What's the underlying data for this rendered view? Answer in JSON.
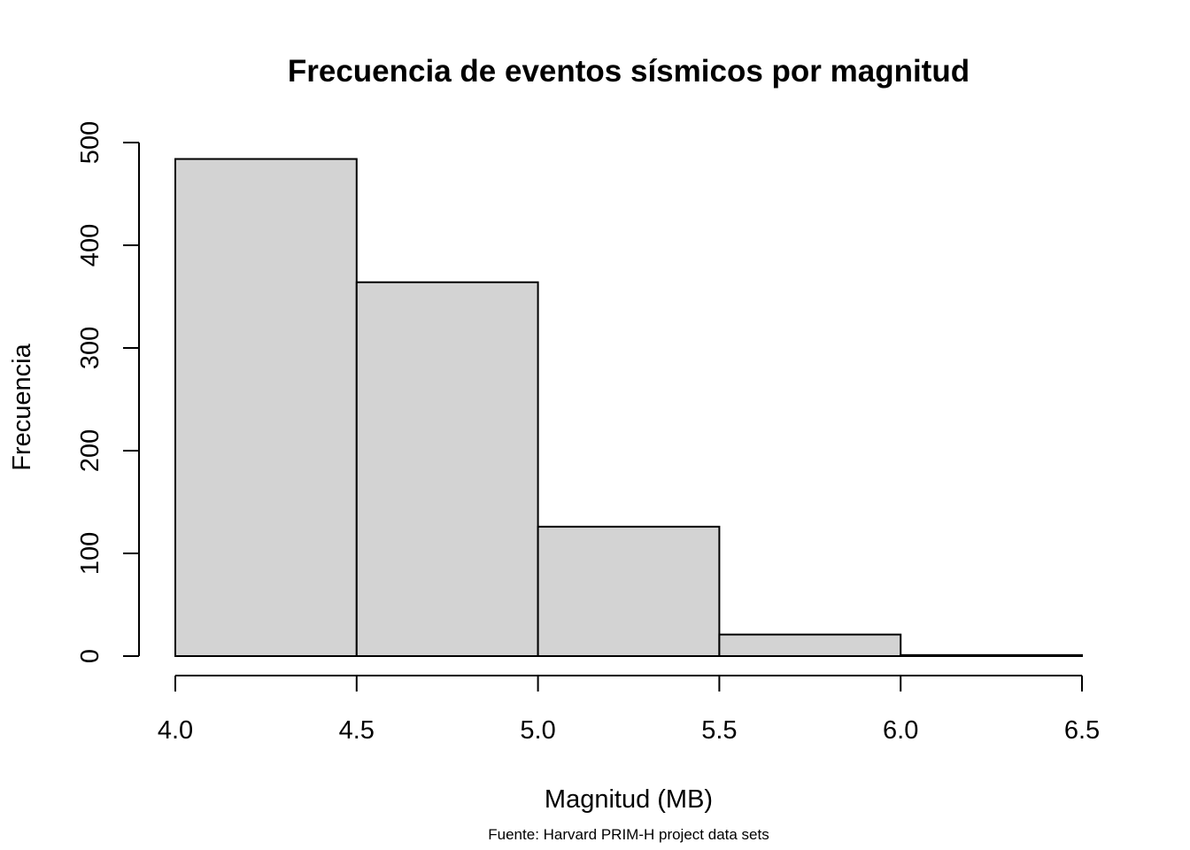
{
  "chart_data": {
    "type": "bar",
    "title": "Frecuencia de eventos sísmicos por magnitud",
    "xlabel": "Magnitud (MB)",
    "ylabel": "Frecuencia",
    "caption": "Fuente: Harvard PRIM-H project data sets",
    "bins": [
      {
        "from": 4.0,
        "to": 4.5,
        "count": 484
      },
      {
        "from": 4.5,
        "to": 5.0,
        "count": 364
      },
      {
        "from": 5.0,
        "to": 5.5,
        "count": 126
      },
      {
        "from": 5.5,
        "to": 6.0,
        "count": 21
      },
      {
        "from": 6.0,
        "to": 6.5,
        "count": 1
      }
    ],
    "xlim": [
      4.0,
      6.5
    ],
    "ylim": [
      0,
      500
    ],
    "x_ticks": [
      "4.0",
      "4.5",
      "5.0",
      "5.5",
      "6.0",
      "6.5"
    ],
    "y_ticks": [
      "0",
      "100",
      "200",
      "300",
      "400",
      "500"
    ],
    "bar_fill": "#d3d3d3",
    "bar_stroke": "#000000",
    "grid": false,
    "legend": "none"
  }
}
